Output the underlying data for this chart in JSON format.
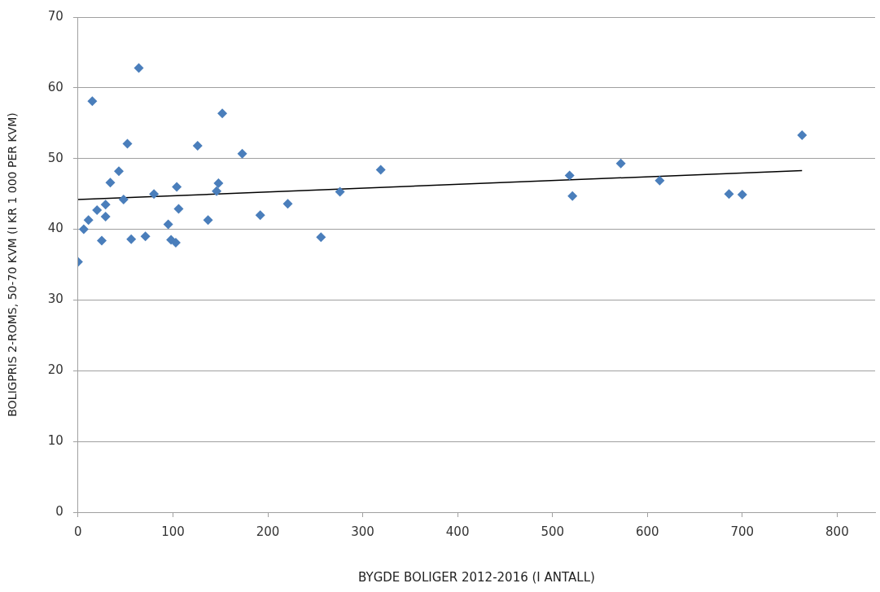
{
  "chart_data": {
    "type": "scatter",
    "xlabel": "BYGDE BOLIGER 2012-2016 (I ANTALL)",
    "ylabel": "BOLIGPRIS 2-ROMS, 50-70 KVM (I KR 1 000 PER KVM)",
    "xlim": [
      0,
      840
    ],
    "xticks": [
      0,
      100,
      200,
      300,
      400,
      500,
      600,
      700,
      800
    ],
    "ylim": [
      0,
      70
    ],
    "yticks": [
      0,
      10,
      20,
      30,
      40,
      50,
      60,
      70
    ],
    "grid": "y",
    "marker": "diamond",
    "series": [
      {
        "type": "scatter",
        "color": "#4a7ebb",
        "x": [
          0,
          6,
          11,
          15,
          20,
          25,
          29,
          29,
          34,
          43,
          48,
          52,
          56,
          64,
          71,
          80,
          95,
          98,
          103,
          104,
          106,
          126,
          137,
          146,
          148,
          152,
          173,
          192,
          221,
          256,
          276,
          319,
          518,
          521,
          572,
          613,
          686,
          700,
          763
        ],
        "values": [
          35.4,
          40,
          41.3,
          58.1,
          42.7,
          38.4,
          43.5,
          41.8,
          46.6,
          48.2,
          44.2,
          52.1,
          38.6,
          62.8,
          39,
          45,
          40.7,
          38.5,
          38.1,
          46,
          42.9,
          51.8,
          41.3,
          45.4,
          46.5,
          56.4,
          50.7,
          42,
          43.6,
          38.9,
          45.3,
          48.4,
          47.6,
          44.7,
          49.3,
          46.9,
          45,
          44.9,
          53.3
        ]
      },
      {
        "type": "line",
        "color": "#000000",
        "marker": "none",
        "line_style": "solid",
        "x": [
          0,
          763
        ],
        "values": [
          44.2,
          48.3
        ]
      }
    ]
  }
}
